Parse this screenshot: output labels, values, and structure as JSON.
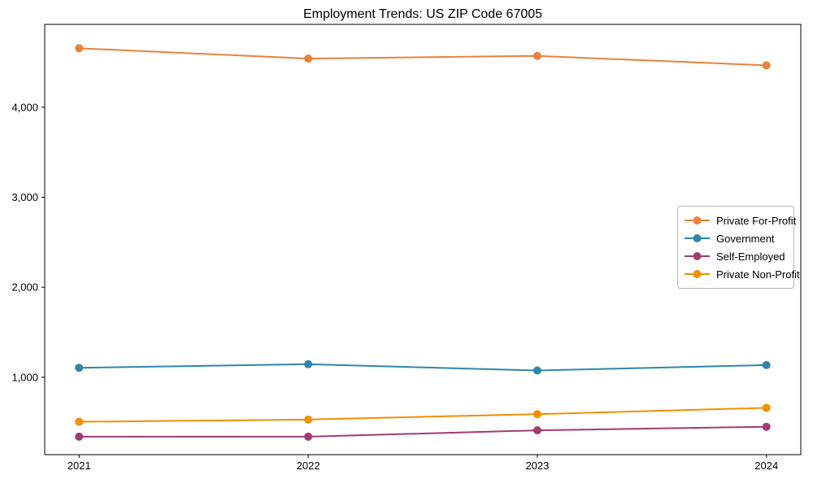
{
  "chart_data": {
    "type": "line",
    "title": "Employment Trends: US ZIP Code 67005",
    "categories": [
      "2021",
      "2022",
      "2023",
      "2024"
    ],
    "series": [
      {
        "name": "Private For-Profit",
        "color": "#E8823D",
        "values": [
          4655,
          4540,
          4570,
          4465
        ]
      },
      {
        "name": "Government",
        "color": "#2E86AB",
        "values": [
          1105,
          1145,
          1075,
          1135
        ]
      },
      {
        "name": "Self-Employed",
        "color": "#A23B72",
        "values": [
          340,
          340,
          410,
          450
        ]
      },
      {
        "name": "Private Non-Profit",
        "color": "#F18F01",
        "values": [
          505,
          530,
          590,
          660
        ]
      }
    ],
    "xlabel": "",
    "ylabel": "",
    "y_ticks": [
      1000,
      2000,
      3000,
      4000
    ],
    "y_tick_labels": [
      "1,000",
      "2,000",
      "3,000",
      "4,000"
    ],
    "ylim": [
      140,
      4920
    ],
    "x_margin_frac": 0.15,
    "grid": false,
    "legend_position": "right-middle",
    "marker": "circle",
    "line_width": 2,
    "marker_radius": 5
  }
}
